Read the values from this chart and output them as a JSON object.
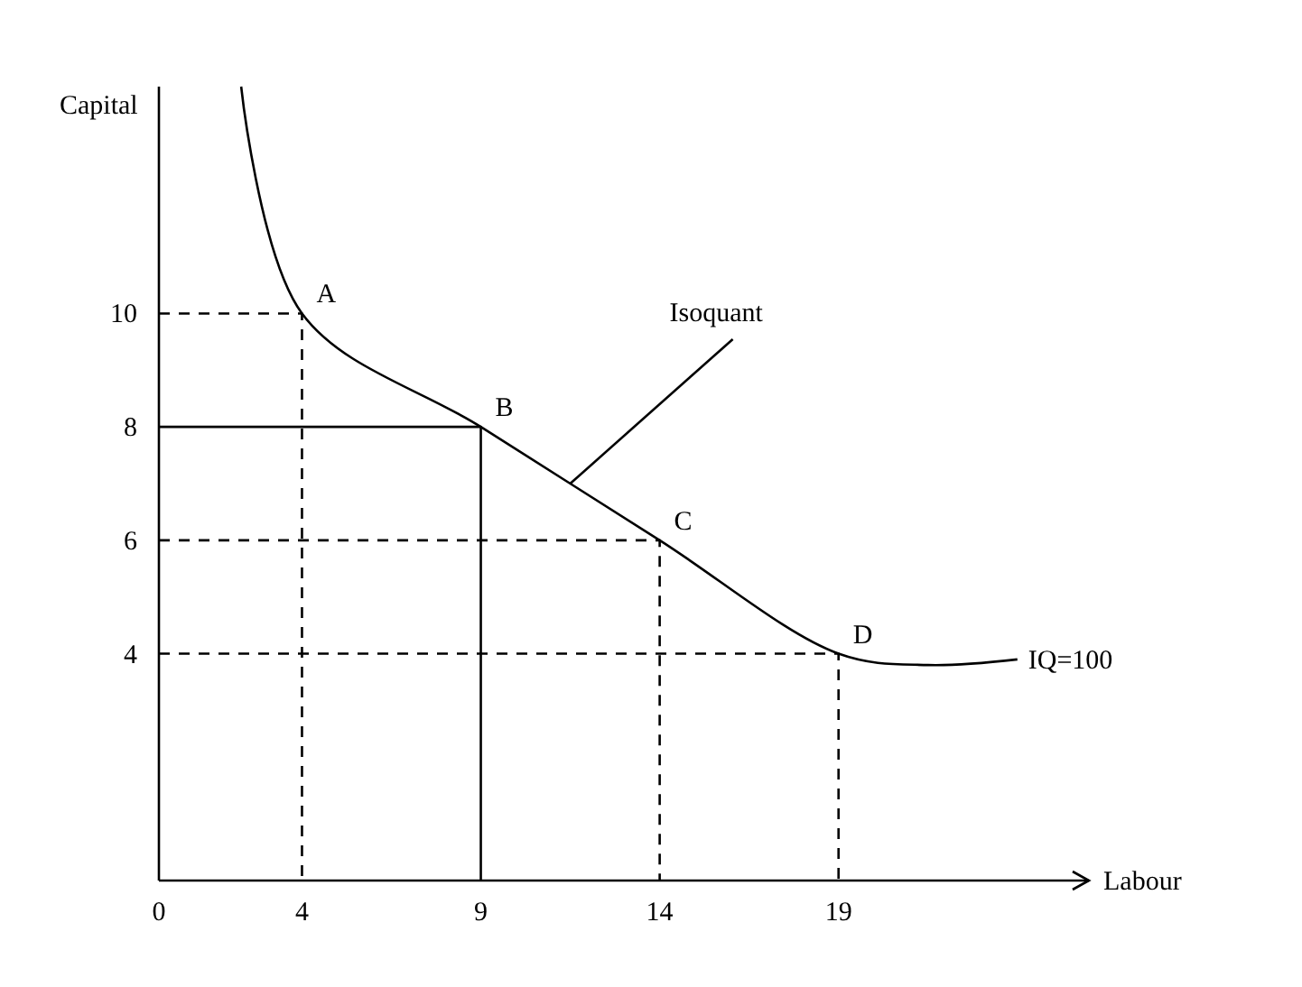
{
  "chart_data": {
    "type": "line",
    "xlabel": "Labour",
    "ylabel": "Capital",
    "xlim": [
      0,
      26
    ],
    "ylim": [
      0,
      14
    ],
    "xticks": [
      0,
      4,
      9,
      14,
      19
    ],
    "yticks": [
      4,
      6,
      8,
      10
    ],
    "grid": false,
    "marker": "none",
    "series": [
      {
        "name": "IQ=100",
        "color": "#000000",
        "line_style": "solid",
        "x": [
          2.3,
          4,
          9,
          14,
          19,
          21.5,
          24
        ],
        "values": [
          14,
          10,
          8,
          6,
          4,
          3.8,
          3.9
        ]
      },
      {
        "color": "#000000",
        "line_style": "solid",
        "x": [
          0,
          9,
          9
        ],
        "values": [
          8,
          8,
          0
        ]
      },
      {
        "color": "#000000",
        "line_style": "dashed",
        "x": [
          0,
          4,
          4
        ],
        "values": [
          10,
          10,
          0
        ]
      },
      {
        "color": "#000000",
        "line_style": "dashed",
        "x": [
          0,
          14,
          14
        ],
        "values": [
          6,
          6,
          0
        ]
      },
      {
        "color": "#000000",
        "line_style": "dashed",
        "x": [
          0,
          19,
          19
        ],
        "values": [
          4,
          4,
          0
        ]
      }
    ],
    "annotations": [
      {
        "text": "A",
        "x": 4,
        "y": 10
      },
      {
        "text": "B",
        "x": 9,
        "y": 8
      },
      {
        "text": "C",
        "x": 14,
        "y": 6
      },
      {
        "text": "D",
        "x": 19,
        "y": 4
      },
      {
        "text": "Isoquant",
        "x": 11.5,
        "y": 7
      }
    ]
  }
}
